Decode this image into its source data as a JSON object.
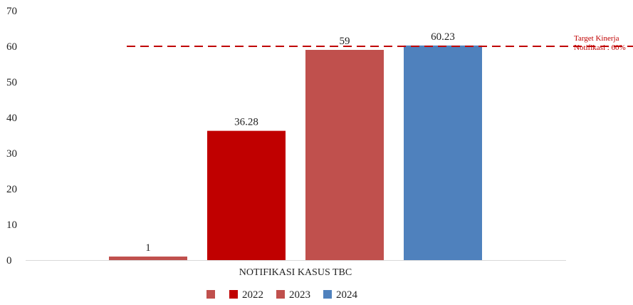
{
  "chart_data": {
    "type": "bar",
    "categories": [
      "NOTIFIKASI KASUS TBC"
    ],
    "series": [
      {
        "name": "",
        "values": [
          1
        ],
        "color": "#c0504d"
      },
      {
        "name": "2022",
        "values": [
          36.28
        ],
        "color": "#c00000"
      },
      {
        "name": "2023",
        "values": [
          59
        ],
        "color": "#c0504d"
      },
      {
        "name": "2024",
        "values": [
          60.23
        ],
        "color": "#4f81bd"
      }
    ],
    "data_labels": [
      "1",
      "36.28",
      "59",
      "60.23"
    ],
    "ylim": [
      0,
      70
    ],
    "yticks": [
      0,
      10,
      20,
      30,
      40,
      50,
      60,
      70
    ],
    "ytick_labels": [
      "0",
      "10",
      "20",
      "30",
      "40",
      "50",
      "60",
      "70"
    ],
    "target": {
      "value": 60,
      "label_line1": "Target Kinerja",
      "label_line2": "Notifikasi : 60%",
      "color": "#c00000"
    },
    "legend_position": "bottom",
    "grid": false,
    "title": "",
    "xlabel": "",
    "ylabel": ""
  }
}
